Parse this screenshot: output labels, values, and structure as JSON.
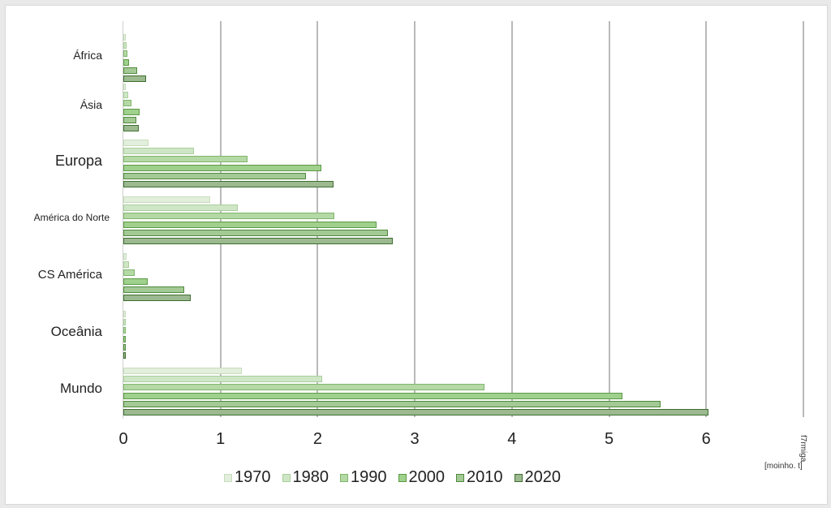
{
  "chart_data": {
    "type": "bar",
    "orientation": "horizontal",
    "title": "",
    "xlabel": "",
    "ylabel": "",
    "unit_label_rotated": "f7rmiga",
    "unit_label": "[moinho. t]",
    "xlim": [
      0,
      7
    ],
    "x_ticks": [
      "0",
      "1",
      "2",
      "3",
      "4",
      "5",
      "6"
    ],
    "grid": true,
    "legend_position": "bottom",
    "categories": [
      "África",
      "Ásia",
      "Europa",
      "América do Norte",
      "CS América",
      "Oceânia",
      "Mundo"
    ],
    "series": [
      {
        "name": "1970",
        "values": [
          0.01,
          0.02,
          0.26,
          0.89,
          0.03,
          0.01,
          1.22
        ]
      },
      {
        "name": "1980",
        "values": [
          0.03,
          0.05,
          0.73,
          1.18,
          0.06,
          0.01,
          2.05
        ]
      },
      {
        "name": "1990",
        "values": [
          0.04,
          0.08,
          1.28,
          2.17,
          0.12,
          0.02,
          3.72
        ]
      },
      {
        "name": "2000",
        "values": [
          0.06,
          0.17,
          2.04,
          2.61,
          0.25,
          0.02,
          5.14
        ]
      },
      {
        "name": "2010",
        "values": [
          0.14,
          0.13,
          1.88,
          2.72,
          0.63,
          0.02,
          5.53
        ]
      },
      {
        "name": "2020",
        "values": [
          0.23,
          0.16,
          2.16,
          2.77,
          0.69,
          0.02,
          6.02
        ]
      }
    ]
  },
  "style": {
    "series_fill": [
      "#e2efdc",
      "#cfe6c6",
      "#b4d9a5",
      "#9fd08c",
      "#a3c995",
      "#9cb990"
    ],
    "series_border": [
      "#c7dcbd",
      "#a9cf9b",
      "#7fb66c",
      "#5b9a45",
      "#4f8a3c",
      "#3f6f31"
    ]
  },
  "category_label_sizes": [
    14,
    14,
    18,
    12,
    15,
    17,
    17
  ],
  "legend": {
    "items": [
      "1970",
      "1980",
      "1990",
      "2000",
      "2010",
      "2020"
    ]
  }
}
